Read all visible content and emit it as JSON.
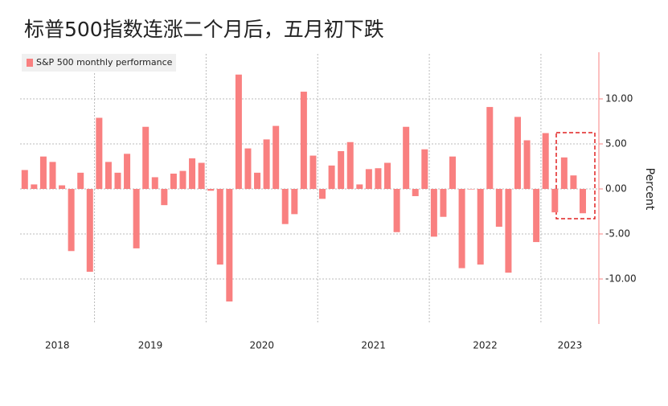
{
  "chart_data": {
    "type": "bar",
    "title": "标普500指数连涨二个月后，五月初下跌",
    "y_label": "Percent",
    "series": [
      {
        "name": "S&P 500 monthly performance",
        "color": "#f98080",
        "values": [
          2.1,
          0.5,
          3.6,
          3.0,
          0.4,
          -6.9,
          1.8,
          -9.2,
          7.9,
          3.0,
          1.8,
          3.9,
          -6.6,
          6.9,
          1.3,
          -1.8,
          1.7,
          2.0,
          3.4,
          2.9,
          -0.2,
          -8.4,
          -12.5,
          12.7,
          4.5,
          1.8,
          5.5,
          7.0,
          -3.9,
          -2.8,
          10.8,
          3.7,
          -1.1,
          2.6,
          4.2,
          5.2,
          0.5,
          2.2,
          2.3,
          2.9,
          -4.8,
          6.9,
          -0.8,
          4.4,
          -5.3,
          -3.1,
          3.6,
          -8.8,
          0.0,
          -8.4,
          9.1,
          -4.2,
          -9.3,
          8.0,
          5.4,
          -5.9,
          6.2,
          -2.6,
          3.5,
          1.5,
          -2.7
        ]
      }
    ],
    "categories": [
      "2018",
      null,
      null,
      null,
      null,
      null,
      null,
      null,
      "2019",
      null,
      null,
      null,
      null,
      null,
      null,
      null,
      null,
      null,
      null,
      null,
      "2020",
      null,
      null,
      null,
      null,
      null,
      null,
      null,
      null,
      null,
      null,
      null,
      "2021",
      null,
      null,
      null,
      null,
      null,
      null,
      null,
      null,
      null,
      null,
      null,
      "2022",
      null,
      null,
      null,
      null,
      null,
      null,
      null,
      null,
      null,
      null,
      null,
      "2023",
      null,
      null,
      null,
      null
    ],
    "ylim": [
      -15,
      15
    ],
    "yticks": [
      {
        "value": -10,
        "label": "-10.00"
      },
      {
        "value": -5,
        "label": "-5.00"
      },
      {
        "value": 0,
        "label": "0.00"
      },
      {
        "value": 5,
        "label": "5.00"
      },
      {
        "value": 10,
        "label": "10.00"
      }
    ],
    "grid": true,
    "legend": "top-left"
  }
}
